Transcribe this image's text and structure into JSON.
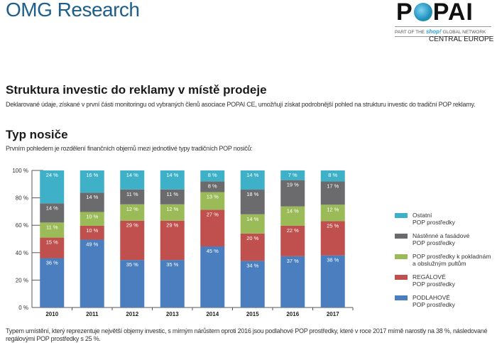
{
  "header": {
    "omg_logo": "OMG Research",
    "popai_logo": "POPAI",
    "popai_tagline_pre": "PART OF THE",
    "popai_tagline_shop": "shop!",
    "popai_tagline_post": "GLOBAL NETWORK",
    "popai_region": "CENTRAL EUROPE"
  },
  "title": "Struktura investic do reklamy v místě prodeje",
  "intro": "Deklarované údaje, získané v první části monitoringu od vybraných členů asociace POPAI CE, umožňují získat podrobnější pohled na strukturu investic do tradiční POP reklamy.",
  "section_title": "Typ nosiče",
  "section_intro": "Prvním pohledem je rozdělení finančních objemů mezi jednotlivé typy tradičních POP nosičů:",
  "footer": "Typem umístění, který reprezentuje největší objemy investic, s mírným nárůstem oproti 2016 jsou podlahové POP prostředky, které v roce 2017 mírně narostly na 38 %, následované regálovými POP prostředky s 25 %.",
  "chart_data": {
    "type": "bar",
    "stacked": true,
    "categories": [
      "2010",
      "2011",
      "2012",
      "2013",
      "2014",
      "2015",
      "2016",
      "2017"
    ],
    "ylim": [
      0,
      100
    ],
    "yticks": [
      "0 %",
      "20 %",
      "40 %",
      "60 %",
      "80 %",
      "100 %"
    ],
    "grid": false,
    "legend_position": "right",
    "series": [
      {
        "name": "PODLAHOVÉ POP prostředky",
        "legend_lines": [
          "PODLAHOVÉ",
          "POP prostředky"
        ],
        "color": "#4a7ebf",
        "values": [
          36,
          49,
          35,
          35,
          45,
          34,
          37,
          38
        ]
      },
      {
        "name": "REGÁLOVÉ POP prostředky",
        "legend_lines": [
          "REGÁLOVÉ",
          "POP prostředky"
        ],
        "color": "#c0504d",
        "values": [
          15,
          10,
          29,
          29,
          27,
          20,
          22,
          25
        ]
      },
      {
        "name": "POP prostředky k pokladnám a obslužným pultům",
        "legend_lines": [
          "POP prostředky k pokladnám",
          "a obslužným pultům"
        ],
        "color": "#9bbb59",
        "values": [
          11,
          10,
          12,
          12,
          13,
          14,
          14,
          12
        ]
      },
      {
        "name": "Nástěnné a fasádové POP prostředky",
        "legend_lines": [
          "Nástěnné a fasádové",
          "POP prostředky"
        ],
        "color": "#6b6b6e",
        "values": [
          14,
          14,
          11,
          11,
          8,
          18,
          19,
          17
        ]
      },
      {
        "name": "Ostatní POP prostředky",
        "legend_lines": [
          "Ostatní",
          "POP prostředky"
        ],
        "color": "#3eb1c8",
        "values": [
          24,
          16,
          14,
          14,
          8,
          14,
          7,
          8
        ]
      }
    ]
  }
}
